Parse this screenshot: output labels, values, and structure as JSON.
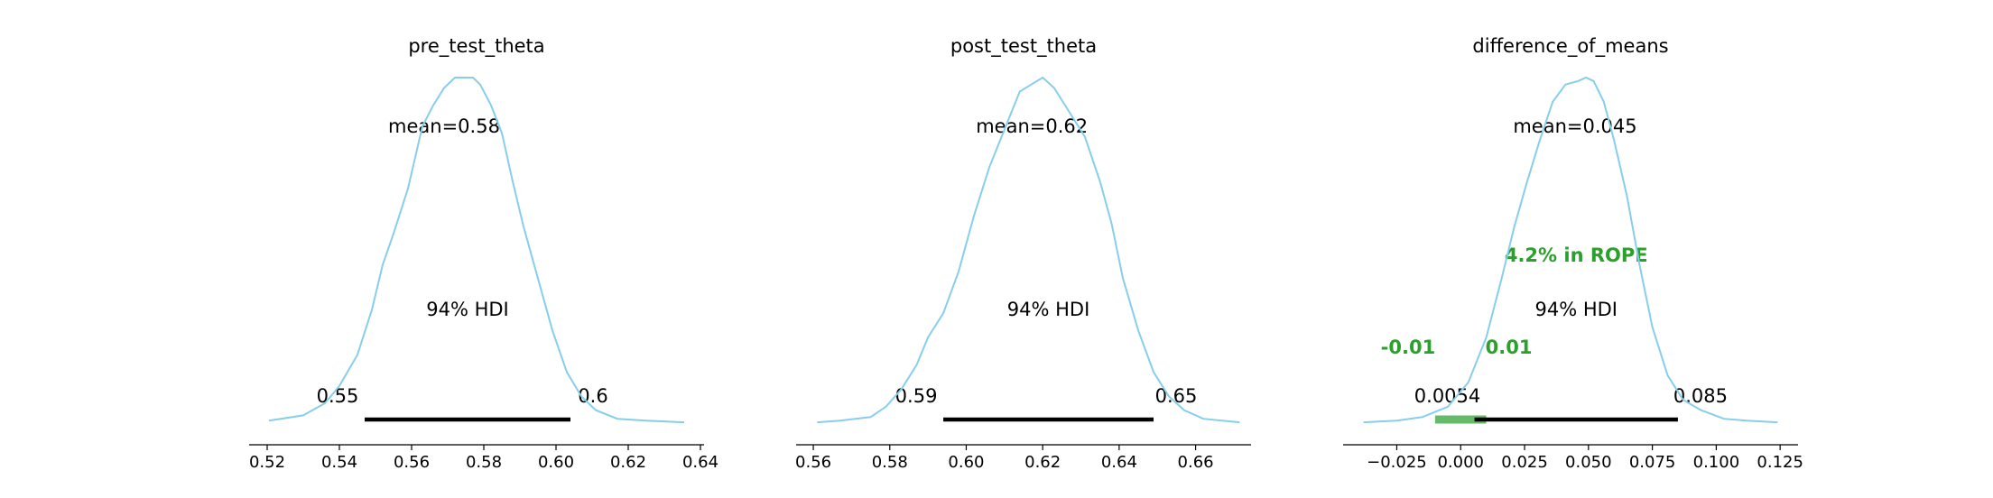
{
  "colors": {
    "density": "#87ceeb",
    "hdi_bar": "#000000",
    "rope": "#2ca02c",
    "rope_bar": "#66bb6a",
    "axis": "#000000"
  },
  "chart_data": [
    {
      "type": "area",
      "title": "pre_test_theta",
      "mean_label": "mean=0.58",
      "hdi_label": "94% HDI",
      "hdi_low_label": "0.55",
      "hdi_high_label": "0.6",
      "hdi": [
        0.547,
        0.604
      ],
      "xlim": [
        0.515,
        0.641
      ],
      "ticks": [
        0.52,
        0.54,
        0.56,
        0.58,
        0.6,
        0.62,
        0.64
      ],
      "tick_labels": [
        "0.52",
        "0.54",
        "0.56",
        "0.58",
        "0.60",
        "0.62",
        "0.64"
      ],
      "density": {
        "x": [
          0.5205,
          0.53,
          0.536,
          0.54,
          0.545,
          0.549,
          0.552,
          0.555,
          0.559,
          0.563,
          0.566,
          0.569,
          0.572,
          0.575,
          0.577,
          0.579,
          0.582,
          0.585,
          0.588,
          0.591,
          0.595,
          0.599,
          0.603,
          0.607,
          0.611,
          0.617,
          0.625,
          0.6355
        ],
        "y": [
          0.01,
          0.025,
          0.06,
          0.11,
          0.2,
          0.33,
          0.46,
          0.55,
          0.68,
          0.86,
          0.92,
          0.97,
          1.0,
          1.0,
          1.0,
          0.98,
          0.92,
          0.84,
          0.7,
          0.57,
          0.42,
          0.27,
          0.15,
          0.08,
          0.04,
          0.015,
          0.01,
          0.005
        ]
      }
    },
    {
      "type": "area",
      "title": "post_test_theta",
      "mean_label": "mean=0.62",
      "hdi_label": "94% HDI",
      "hdi_low_label": "0.59",
      "hdi_high_label": "0.65",
      "hdi": [
        0.594,
        0.649
      ],
      "xlim": [
        0.5555,
        0.6745
      ],
      "ticks": [
        0.56,
        0.58,
        0.6,
        0.62,
        0.64,
        0.66
      ],
      "tick_labels": [
        "0.56",
        "0.58",
        "0.60",
        "0.62",
        "0.64",
        "0.66"
      ],
      "density": {
        "x": [
          0.561,
          0.567,
          0.571,
          0.575,
          0.579,
          0.583,
          0.587,
          0.59,
          0.594,
          0.598,
          0.602,
          0.606,
          0.61,
          0.614,
          0.617,
          0.62,
          0.623,
          0.627,
          0.631,
          0.635,
          0.638,
          0.641,
          0.645,
          0.649,
          0.653,
          0.657,
          0.662,
          0.6715
        ],
        "y": [
          0.005,
          0.01,
          0.015,
          0.02,
          0.05,
          0.1,
          0.17,
          0.25,
          0.32,
          0.44,
          0.6,
          0.74,
          0.85,
          0.96,
          0.98,
          1.0,
          0.97,
          0.9,
          0.83,
          0.7,
          0.58,
          0.42,
          0.27,
          0.15,
          0.08,
          0.04,
          0.015,
          0.005
        ]
      }
    },
    {
      "type": "area",
      "title": "difference_of_means",
      "mean_label": "mean=0.045",
      "hdi_label": "94% HDI",
      "hdi_low_label": "0.0054",
      "hdi_high_label": "0.085",
      "rope_label": "4.2% in ROPE",
      "rope_low_label": "-0.01",
      "rope_high_label": "0.01",
      "rope": [
        -0.01,
        0.01
      ],
      "hdi": [
        0.0054,
        0.085
      ],
      "xlim": [
        -0.046,
        0.132
      ],
      "ticks": [
        -0.025,
        0.0,
        0.025,
        0.05,
        0.075,
        0.1,
        0.125
      ],
      "tick_labels": [
        "−0.025",
        "0.000",
        "0.025",
        "0.050",
        "0.075",
        "0.100",
        "0.125"
      ],
      "density": {
        "x": [
          -0.038,
          -0.025,
          -0.015,
          -0.005,
          0.003,
          0.01,
          0.016,
          0.021,
          0.026,
          0.031,
          0.036,
          0.041,
          0.046,
          0.049,
          0.052,
          0.056,
          0.06,
          0.065,
          0.07,
          0.075,
          0.081,
          0.087,
          0.094,
          0.103,
          0.112,
          0.124
        ],
        "y": [
          0.005,
          0.01,
          0.02,
          0.05,
          0.12,
          0.25,
          0.42,
          0.57,
          0.7,
          0.82,
          0.93,
          0.98,
          0.99,
          1.0,
          0.99,
          0.93,
          0.82,
          0.66,
          0.46,
          0.28,
          0.14,
          0.07,
          0.04,
          0.015,
          0.01,
          0.005
        ]
      }
    }
  ]
}
